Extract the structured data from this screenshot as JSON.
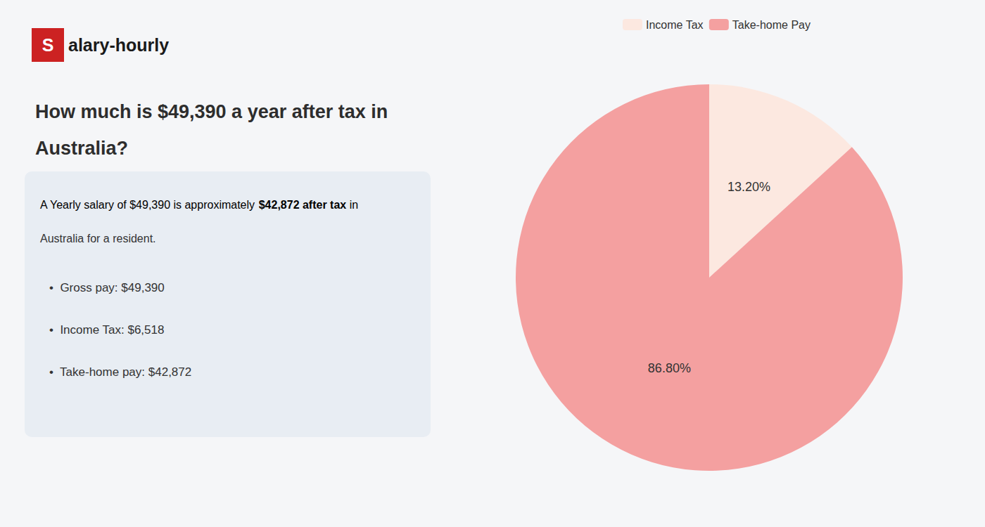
{
  "chart_data": {
    "type": "pie",
    "title": "How much is $49,390 a year after tax in\nAustralia?",
    "categories": [
      "Income Tax",
      "Take-home Pay"
    ],
    "values": [
      13.2,
      86.8
    ],
    "value_labels": [
      "13.20%",
      "86.80%"
    ],
    "colors": [
      "#fce8e0",
      "#f4a0a0"
    ],
    "data_labels": true,
    "legend": "top",
    "annotations": [
      {
        "text": "S",
        "color": "#cc2222"
      },
      {
        "text": "alary-hourly"
      },
      {
        "text": "A Yearly salary of $49,390 is approximately "
      },
      {
        "text": "$42,872 after tax",
        "color": "#cc2222"
      },
      {
        "text": " in"
      },
      {
        "text": "Australia for a resident."
      },
      {
        "text": "•  Gross pay: $49,390"
      },
      {
        "text": "•  Income Tax: $6,518"
      },
      {
        "text": "•  Take-home pay: $42,872"
      }
    ]
  }
}
